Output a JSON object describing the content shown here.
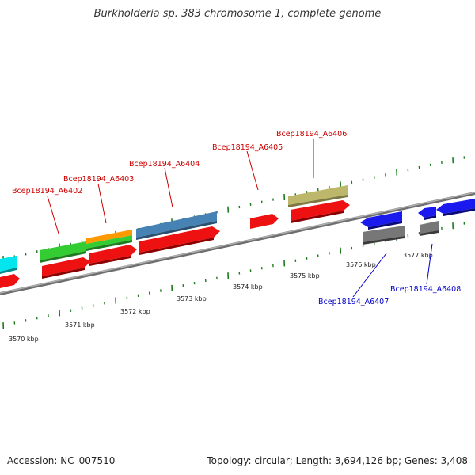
{
  "title": "Burkholderia sp. 383 chromosome 1, complete genome",
  "footer": {
    "accession": "Accession: NC_007510",
    "stats": "Topology: circular; Length: 3,694,126 bp; Genes: 3,408"
  },
  "colors": {
    "backbone": "#8a8a8a",
    "tick": "#1f7a1f",
    "label_red": "#cc0000",
    "label_blue": "#0000cc",
    "cds": "#ee1111",
    "gene_cyan": "#00e5ee",
    "gene_green": "#33cc33",
    "gene_orange": "#ff9900",
    "gene_steelblue": "#4682b4",
    "gene_khaki": "#bdb76b",
    "gene_blue": "#1a1aee",
    "gene_gray": "#777777"
  },
  "axis": {
    "unit": "kbp",
    "ticks_kbp": [
      3570,
      3571,
      3572,
      3573,
      3574,
      3575,
      3576,
      3577
    ]
  },
  "tick_labels": [
    "3570 kbp",
    "3571 kbp",
    "3572 kbp",
    "3573 kbp",
    "3574 kbp",
    "3575 kbp",
    "3576 kbp",
    "3577 kbp"
  ],
  "gene_labels": [
    {
      "text": "Bcep18194_A6402",
      "color": "red"
    },
    {
      "text": "Bcep18194_A6403",
      "color": "red"
    },
    {
      "text": "Bcep18194_A6404",
      "color": "red"
    },
    {
      "text": "Bcep18194_A6405",
      "color": "red"
    },
    {
      "text": "Bcep18194_A6406",
      "color": "red"
    },
    {
      "text": "Bcep18194_A6407",
      "color": "blue"
    },
    {
      "text": "Bcep18194_A6408",
      "color": "blue"
    }
  ]
}
